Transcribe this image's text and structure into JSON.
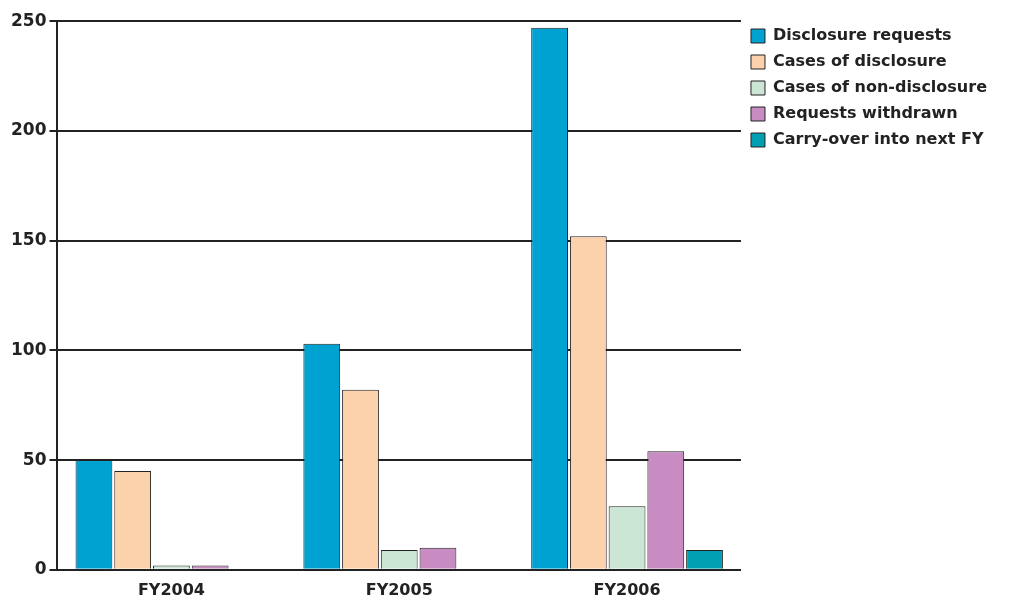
{
  "chart_data": {
    "type": "bar",
    "categories": [
      "FY2004",
      "FY2005",
      "FY2006"
    ],
    "series": [
      {
        "name": "Disclosure requests",
        "color": "#00a2d2",
        "values": [
          50,
          103,
          247
        ]
      },
      {
        "name": "Cases of disclosure",
        "color": "#fcd2ac",
        "values": [
          45,
          82,
          152
        ]
      },
      {
        "name": "Cases of non-disclosure",
        "color": "#cce6d6",
        "values": [
          2,
          9,
          29
        ]
      },
      {
        "name": "Requests withdrawn",
        "color": "#c88cc2",
        "values": [
          2,
          10,
          54
        ]
      },
      {
        "name": "Carry-over into next FY",
        "color": "#009fb2",
        "values": [
          0,
          0,
          9
        ]
      }
    ],
    "ylim": [
      0,
      250
    ],
    "yticks": [
      0,
      50,
      100,
      150,
      200,
      250
    ],
    "grid": "y",
    "legend": "right"
  }
}
